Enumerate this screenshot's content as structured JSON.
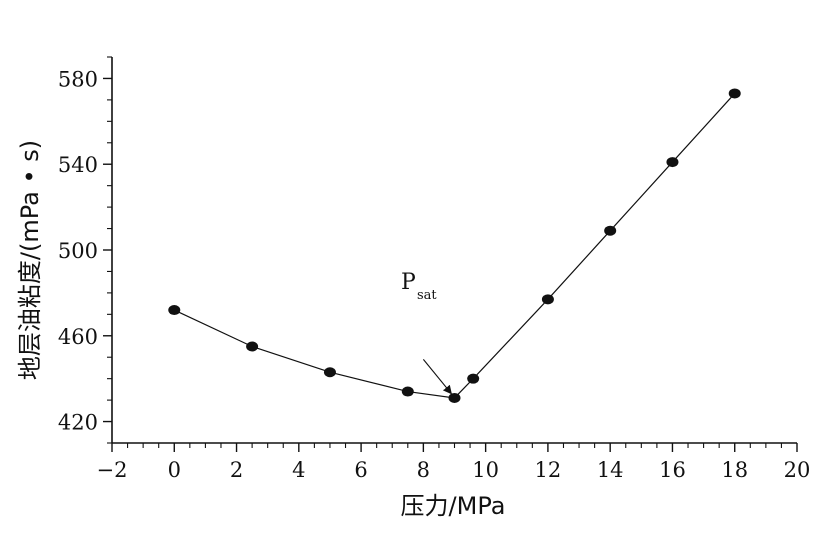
{
  "chart_data": {
    "type": "line",
    "xlabel": "压力/MPa",
    "ylabel": "地层油粘度/(mPa • s)",
    "xlim": [
      -2,
      20
    ],
    "ylim": [
      410,
      590
    ],
    "x_ticks": [
      -2,
      0,
      2,
      4,
      6,
      8,
      10,
      12,
      14,
      16,
      18,
      20
    ],
    "x_tick_labels": [
      "−2",
      "0",
      "2",
      "4",
      "6",
      "8",
      "10",
      "12",
      "14",
      "16",
      "18",
      "20"
    ],
    "y_ticks": [
      420,
      460,
      500,
      540,
      580
    ],
    "y_tick_labels": [
      "420",
      "460",
      "500",
      "540",
      "580"
    ],
    "grid": false,
    "series": [
      {
        "x": [
          0,
          2.5,
          5,
          7.5,
          9,
          9.6,
          12,
          14,
          16,
          18
        ],
        "y": [
          472,
          455,
          443,
          434,
          431,
          440,
          477,
          509,
          541,
          573
        ],
        "color": "#111111"
      }
    ],
    "annotations": [
      {
        "main": "P",
        "sub": "sat",
        "arrow_from": [
          8,
          449
        ],
        "arrow_to": [
          8.9,
          433
        ]
      }
    ]
  }
}
